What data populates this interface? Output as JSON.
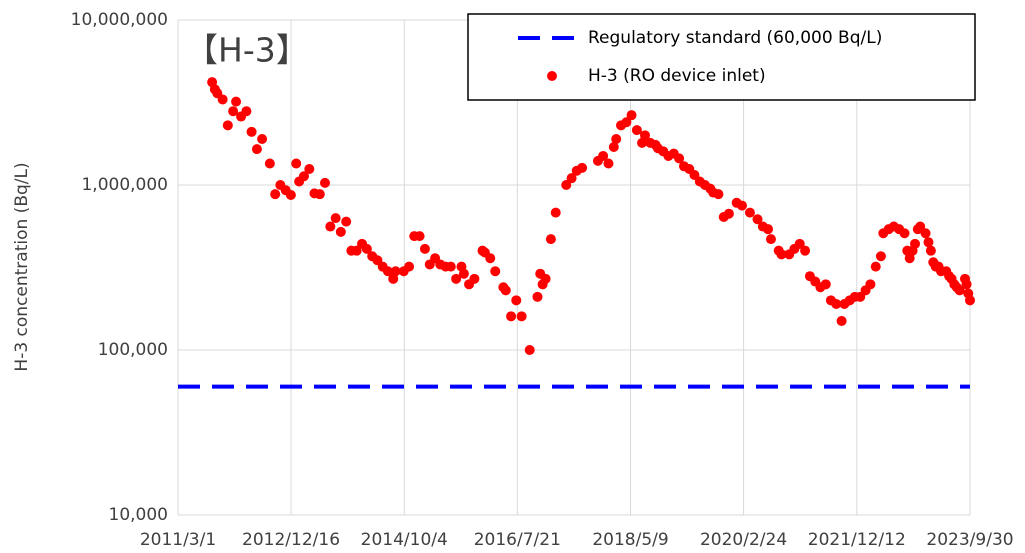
{
  "chart_data": {
    "type": "scatter",
    "annotation": "【H-3】",
    "y_label": "H-3 concentration (Bq/L)",
    "log_y": true,
    "grid": true,
    "legend": "upper right",
    "xlim": [
      "2011/3/1",
      "2023/9/30"
    ],
    "xticks": [
      "2011/3/1",
      "2012/12/16",
      "2014/10/4",
      "2016/7/21",
      "2018/5/9",
      "2020/2/24",
      "2021/12/12",
      "2023/9/30"
    ],
    "ylim": [
      10000,
      10000000
    ],
    "yticks": [
      {
        "value": 10000,
        "label": "10,000"
      },
      {
        "value": 100000,
        "label": "100,000"
      },
      {
        "value": 1000000,
        "label": "1,000,000"
      },
      {
        "value": 10000000,
        "label": "10,000,000"
      }
    ],
    "series": [
      {
        "name": "Regulatory standard (60,000 Bq/L)",
        "color": "#0000ff",
        "style": "dashed",
        "x": [
          "2011/3/1",
          "2023/9/30"
        ],
        "values": [
          60000,
          60000
        ]
      },
      {
        "name": "H-3 (RO device inlet)",
        "color": "#ff0000",
        "style": "markers",
        "x": [
          "2011/9/15",
          "2011/10/1",
          "2011/10/15",
          "2011/11/15",
          "2011/12/15",
          "2012/1/15",
          "2012/2/1",
          "2012/3/1",
          "2012/4/1",
          "2012/5/1",
          "2012/6/1",
          "2012/7/1",
          "2012/8/15",
          "2012/9/15",
          "2012/10/15",
          "2012/11/15",
          "2012/12/15",
          "2013/1/15",
          "2013/2/1",
          "2013/3/1",
          "2013/4/1",
          "2013/5/1",
          "2013/6/1",
          "2013/7/1",
          "2013/8/1",
          "2013/9/1",
          "2013/10/1",
          "2013/11/1",
          "2013/12/1",
          "2014/1/1",
          "2014/2/1",
          "2014/3/1",
          "2014/4/1",
          "2014/5/1",
          "2014/6/1",
          "2014/7/1",
          "2014/8/1",
          "2014/8/15",
          "2014/10/1",
          "2014/11/1",
          "2014/12/1",
          "2015/1/1",
          "2015/2/1",
          "2015/3/1",
          "2015/4/1",
          "2015/5/1",
          "2015/6/1",
          "2015/7/1",
          "2015/8/1",
          "2015/9/1",
          "2015/9/15",
          "2015/10/15",
          "2015/11/15",
          "2016/1/1",
          "2016/1/15",
          "2016/2/15",
          "2016/3/15",
          "2016/5/1",
          "2016/5/15",
          "2016/6/15",
          "2016/7/15",
          "2016/8/15",
          "2016/10/1",
          "2016/11/15",
          "2016/12/1",
          "2016/12/15",
          "2017/1/1",
          "2017/2/1",
          "2017/3/1",
          "2017/5/1",
          "2017/6/1",
          "2017/7/1",
          "2017/8/1",
          "2017/11/1",
          "2017/12/1",
          "2018/1/1",
          "2018/2/1",
          "2018/2/15",
          "2018/3/15",
          "2018/4/15",
          "2018/5/15",
          "2018/6/15",
          "2018/7/15",
          "2018/8/1",
          "2018/9/1",
          "2018/10/1",
          "2018/10/15",
          "2018/11/15",
          "2018/12/15",
          "2019/1/15",
          "2019/2/15",
          "2019/3/15",
          "2019/4/15",
          "2019/5/15",
          "2019/6/15",
          "2019/7/15",
          "2019/8/15",
          "2019/9/1",
          "2019/10/1",
          "2019/11/1",
          "2019/12/1",
          "2020/1/15",
          "2020/2/15",
          "2020/4/1",
          "2020/5/15",
          "2020/6/15",
          "2020/7/15",
          "2020/8/1",
          "2020/9/15",
          "2020/10/1",
          "2020/11/15",
          "2020/12/15",
          "2021/1/15",
          "2021/2/15",
          "2021/3/15",
          "2021/4/15",
          "2021/5/15",
          "2021/6/15",
          "2021/7/15",
          "2021/8/15",
          "2021/9/15",
          "2021/10/1",
          "2021/11/1",
          "2021/12/1",
          "2022/1/1",
          "2022/2/1",
          "2022/3/1",
          "2022/4/1",
          "2022/5/1",
          "2022/5/15",
          "2022/6/15",
          "2022/7/15",
          "2022/8/15",
          "2022/9/15",
          "2022/10/1",
          "2022/10/15",
          "2022/11/1",
          "2022/11/15",
          "2022/12/1",
          "2022/12/15",
          "2023/1/15",
          "2023/2/1",
          "2023/2/15",
          "2023/3/1",
          "2023/3/15",
          "2023/4/1",
          "2023/4/15",
          "2023/5/15",
          "2023/6/1",
          "2023/6/15",
          "2023/7/1",
          "2023/7/15",
          "2023/8/1",
          "2023/9/1",
          "2023/9/10",
          "2023/9/20",
          "2023/9/30"
        ],
        "values": [
          4200000,
          3800000,
          3600000,
          3300000,
          2300000,
          2800000,
          3200000,
          2600000,
          2800000,
          2100000,
          1650000,
          1900000,
          1350000,
          880000,
          1000000,
          930000,
          870000,
          1350000,
          1050000,
          1130000,
          1250000,
          890000,
          880000,
          1030000,
          560000,
          630000,
          520000,
          600000,
          400000,
          400000,
          440000,
          410000,
          370000,
          350000,
          320000,
          300000,
          270000,
          300000,
          300000,
          320000,
          490000,
          490000,
          410000,
          330000,
          360000,
          330000,
          320000,
          320000,
          270000,
          320000,
          290000,
          250000,
          270000,
          400000,
          390000,
          360000,
          300000,
          240000,
          230000,
          160000,
          200000,
          160000,
          100000,
          210000,
          290000,
          250000,
          270000,
          470000,
          680000,
          1000000,
          1100000,
          1220000,
          1270000,
          1400000,
          1500000,
          1350000,
          1700000,
          1900000,
          2300000,
          2400000,
          2650000,
          2150000,
          1800000,
          2000000,
          1800000,
          1750000,
          1670000,
          1600000,
          1500000,
          1550000,
          1450000,
          1300000,
          1250000,
          1150000,
          1050000,
          1000000,
          950000,
          900000,
          880000,
          640000,
          670000,
          780000,
          750000,
          680000,
          620000,
          560000,
          540000,
          470000,
          400000,
          380000,
          380000,
          410000,
          440000,
          400000,
          280000,
          260000,
          240000,
          250000,
          200000,
          190000,
          150000,
          190000,
          200000,
          210000,
          210000,
          230000,
          250000,
          320000,
          370000,
          510000,
          540000,
          560000,
          540000,
          510000,
          400000,
          360000,
          400000,
          440000,
          540000,
          560000,
          510000,
          450000,
          400000,
          340000,
          320000,
          320000,
          300000,
          300000,
          280000,
          270000,
          250000,
          240000,
          230000,
          270000,
          250000,
          220000,
          200000
        ]
      }
    ]
  }
}
